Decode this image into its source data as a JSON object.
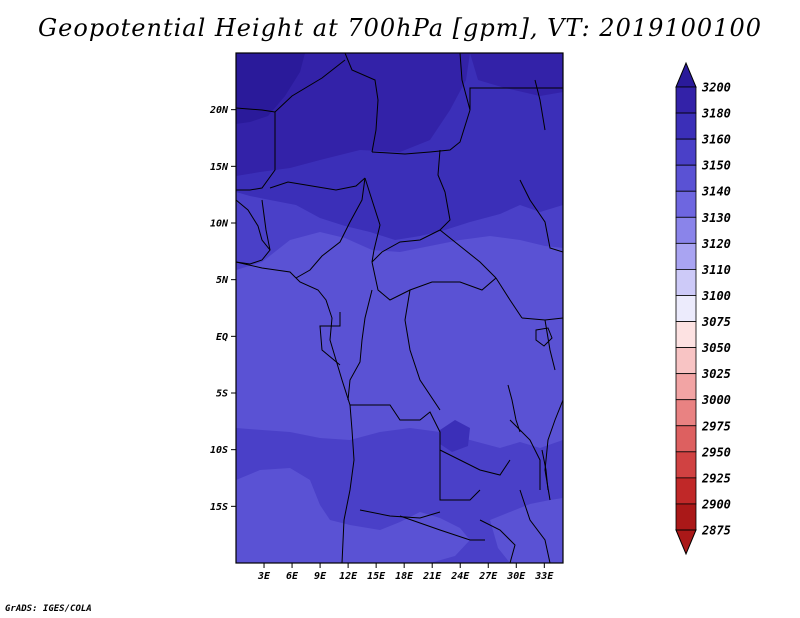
{
  "title": "Geopotential Height at 700hPa [gpm], VT: 2019100100",
  "credit": "GrADS: IGES/COLA",
  "map": {
    "lon_range": [
      0,
      35
    ],
    "lat_range": [
      -20,
      25
    ],
    "lon_ticks": [
      "3E",
      "6E",
      "9E",
      "12E",
      "15E",
      "18E",
      "21E",
      "24E",
      "27E",
      "30E",
      "33E"
    ],
    "lat_ticks": [
      "20N",
      "15N",
      "10N",
      "5N",
      "EQ",
      "5S",
      "10S",
      "15S"
    ]
  },
  "colorbar": {
    "levels": [
      "3200",
      "3180",
      "3160",
      "3150",
      "3140",
      "3130",
      "3120",
      "3110",
      "3100",
      "3075",
      "3050",
      "3025",
      "3000",
      "2975",
      "2950",
      "2925",
      "2900",
      "2875"
    ],
    "colors": [
      "#2a1a9a",
      "#3322a8",
      "#3b2fb8",
      "#4a40c8",
      "#5a52d4",
      "#6e66e0",
      "#8a84ea",
      "#a9a4f2",
      "#cdcaf8",
      "#ecebfc",
      "#fde2e2",
      "#f8c4c4",
      "#f2a4a4",
      "#e98282",
      "#dd6060",
      "#d04242",
      "#c02828",
      "#aa1818"
    ]
  },
  "field_colors": {
    "c3200": "#2a1a9a",
    "c3180": "#3322a8",
    "c3160": "#3b2fb8",
    "c3150": "#4a40c8",
    "c3140": "#5a52d4",
    "c3130": "#6e66e0"
  }
}
